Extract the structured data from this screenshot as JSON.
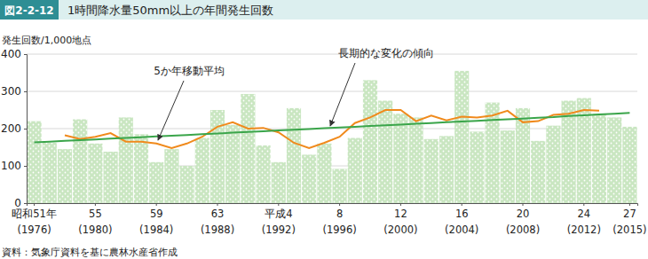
{
  "chart_data": {
    "type": "bar",
    "figure_label": "図2-2-12",
    "title": "1時間降水量50mm以上の年間発生回数",
    "y_label": "発生回数/1,000地点",
    "source": "資料：気象庁資料を基に農林水産省作成",
    "annotations": [
      {
        "text": "5か年移動平均"
      },
      {
        "text": "長期的な変化の傾向"
      }
    ],
    "categories": [
      "昭和51年\n(1976)",
      null,
      null,
      null,
      "55\n(1980)",
      null,
      null,
      null,
      "59\n(1984)",
      null,
      null,
      null,
      "63\n(1988)",
      null,
      null,
      null,
      "平成4\n(1992)",
      null,
      null,
      null,
      "8\n(1996)",
      null,
      null,
      null,
      "12\n(2000)",
      null,
      null,
      null,
      "16\n(2004)",
      null,
      null,
      null,
      "20\n(2008)",
      null,
      null,
      null,
      "24\n(2012)",
      null,
      null,
      "27\n(2015)"
    ],
    "series": [
      {
        "name": "発生回数",
        "type": "bar",
        "color": "#c9e6c1",
        "values": [
          220,
          162,
          145,
          225,
          160,
          138,
          230,
          185,
          110,
          145,
          100,
          175,
          250,
          210,
          293,
          155,
          110,
          255,
          130,
          160,
          92,
          175,
          330,
          275,
          240,
          230,
          172,
          180,
          355,
          192,
          270,
          195,
          255,
          167,
          208,
          275,
          282,
          240,
          230,
          205
        ]
      },
      {
        "name": "5か年移動平均",
        "type": "line",
        "color": "#f08a1c",
        "values": [
          null,
          null,
          182,
          172,
          178,
          188,
          165,
          165,
          160,
          148,
          160,
          178,
          205,
          217,
          200,
          202,
          190,
          162,
          148,
          162,
          178,
          215,
          230,
          250,
          250,
          220,
          235,
          222,
          232,
          230,
          235,
          248,
          217,
          220,
          237,
          240,
          250,
          248,
          null,
          null
        ]
      },
      {
        "name": "長期的な変化の傾向",
        "type": "line",
        "color": "#3aa54a",
        "values": [
          163,
          165,
          167,
          169,
          171,
          173,
          175,
          177,
          179,
          181,
          183,
          185,
          187,
          189,
          191,
          193,
          195,
          197,
          199,
          201,
          203,
          205,
          207,
          209,
          211,
          213,
          215,
          217,
          219,
          221,
          223,
          225,
          227,
          229,
          231,
          234,
          236,
          238,
          240,
          242
        ]
      }
    ],
    "ylim": [
      0,
      400
    ],
    "yticks": [
      0,
      100,
      200,
      300,
      400
    ],
    "grid": true
  }
}
